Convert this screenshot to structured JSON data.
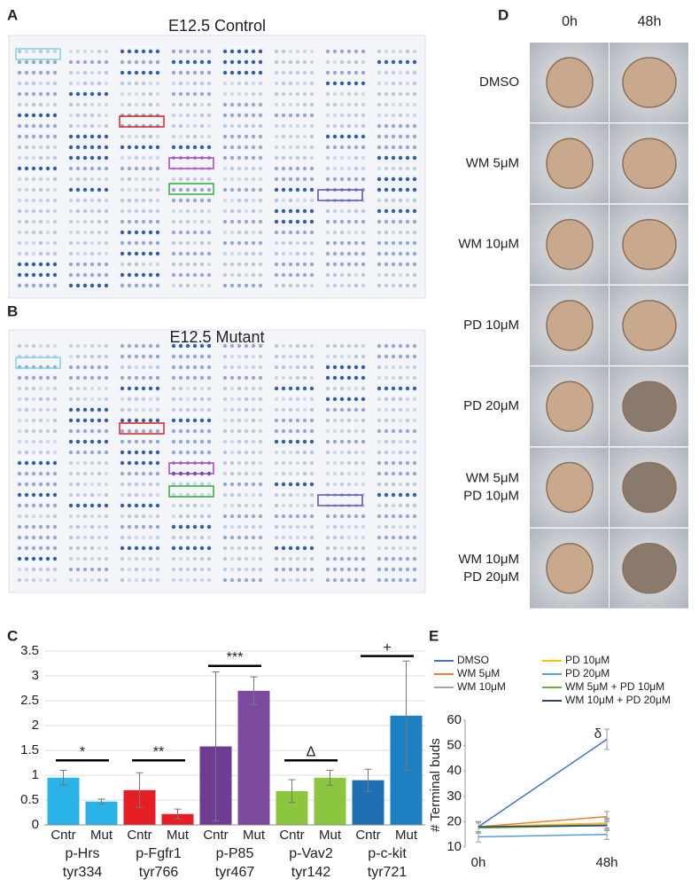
{
  "panel_labels": [
    "A",
    "B",
    "C",
    "D",
    "E"
  ],
  "blots": [
    {
      "title": "E12.5 Control"
    },
    {
      "title": "E12.5 Mutant"
    }
  ],
  "explants": {
    "columns": [
      "0h",
      "48h"
    ],
    "rows": [
      [
        "DMSO"
      ],
      [
        "WM 5μM"
      ],
      [
        "WM 10μM"
      ],
      [
        "PD 10μM"
      ],
      [
        "PD 20μM"
      ],
      [
        "WM 5μM",
        "PD 10μM"
      ],
      [
        "WM 10μM",
        "PD 20μM"
      ]
    ]
  },
  "chart_data": [
    {
      "type": "bar",
      "categories": [
        "Cntr",
        "Mut",
        "Cntr",
        "Mut",
        "Cntr",
        "Mut",
        "Cntr",
        "Mut",
        "Cntr",
        "Mut"
      ],
      "group_labels": [
        [
          "p-Hrs",
          "tyr334"
        ],
        [
          "p-Fgfr1",
          "tyr766"
        ],
        [
          "p-P85",
          "tyr467"
        ],
        [
          "p-Vav2",
          "tyr142"
        ],
        [
          "p-c-kit",
          "tyr721"
        ]
      ],
      "values": [
        0.95,
        0.47,
        0.7,
        0.22,
        1.58,
        2.7,
        0.68,
        0.95,
        0.9,
        2.2
      ],
      "errors": [
        0.15,
        0.05,
        0.35,
        0.1,
        1.5,
        0.28,
        0.23,
        0.15,
        0.22,
        1.1
      ],
      "colors": [
        "#29b3e6",
        "#29b3e6",
        "#e51e25",
        "#e51e25",
        "#6f3c94",
        "#7b4a9e",
        "#8cc63f",
        "#8cc63f",
        "#1f6fb4",
        "#1d80c3"
      ],
      "annotations": [
        "*",
        "**",
        "***",
        "Δ",
        "+"
      ],
      "ylim": [
        0,
        3.5
      ],
      "yticks": [
        0,
        0.5,
        1,
        1.5,
        2,
        2.5,
        3,
        3.5
      ],
      "grid": true
    },
    {
      "type": "line",
      "x": [
        "0h",
        "48h"
      ],
      "y_label": "# Terminal buds",
      "series": [
        {
          "name": "DMSO",
          "color": "#4472c4",
          "values": [
            18,
            52.5
          ],
          "errors": [
            2,
            4
          ]
        },
        {
          "name": "WM 5μM",
          "color": "#ed7d31",
          "values": [
            18,
            22
          ],
          "errors": [
            2,
            2
          ]
        },
        {
          "name": "WM 10μM",
          "color": "#a5a5a5",
          "values": [
            18,
            19
          ],
          "errors": [
            2,
            2
          ]
        },
        {
          "name": "PD 10μM",
          "color": "#ffc000",
          "values": [
            18,
            19.5
          ],
          "errors": [
            2,
            2
          ]
        },
        {
          "name": "PD 20μM",
          "color": "#5b9bd5",
          "values": [
            14,
            15
          ],
          "errors": [
            2,
            2
          ]
        },
        {
          "name": "WM 5μM + PD 10μM",
          "color": "#70ad47",
          "values": [
            17.5,
            18.5
          ],
          "errors": [
            2,
            2
          ]
        },
        {
          "name": "WM 10μM + PD 20μM",
          "color": "#264478",
          "values": [
            18,
            18.5
          ],
          "errors": [
            2,
            2
          ]
        }
      ],
      "annotation": "δ",
      "ylim": [
        10,
        60
      ],
      "yticks": [
        10,
        20,
        30,
        40,
        50,
        60
      ]
    }
  ]
}
